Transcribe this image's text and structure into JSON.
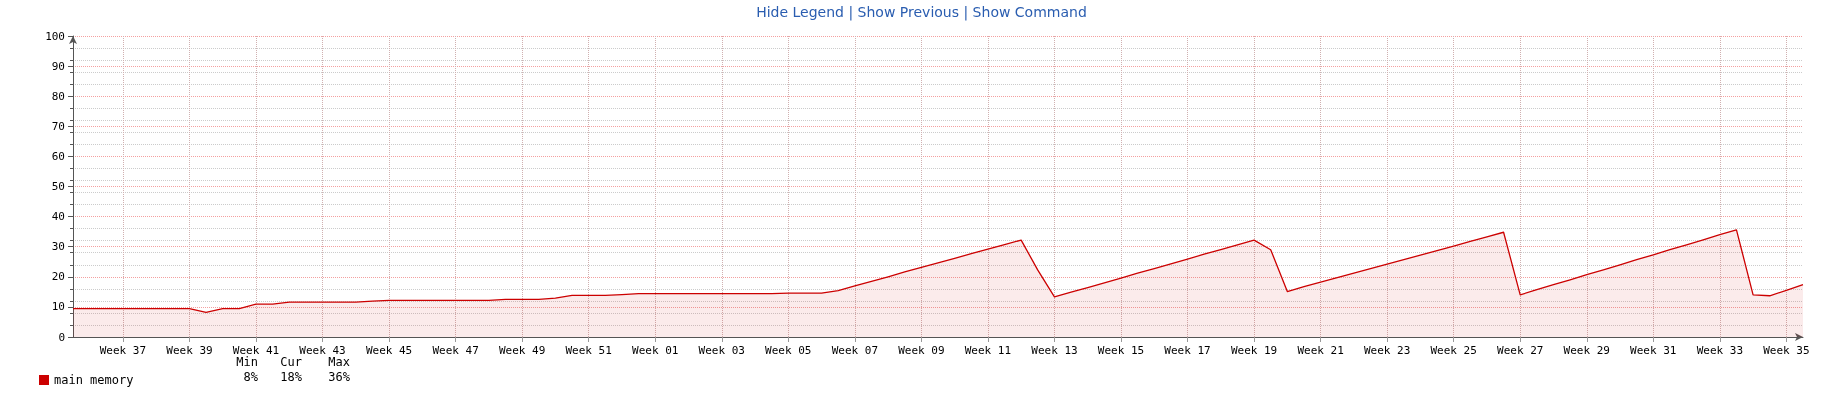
{
  "chart_data": {
    "type": "area",
    "annotations": [
      "Hide Legend | Show Previous | Show Command",
      "Min",
      "Cur",
      "Max",
      "8%",
      "18%",
      "36%"
    ],
    "categories": [
      null,
      null,
      null,
      "Week 37",
      null,
      null,
      null,
      "Week 39",
      null,
      null,
      null,
      "Week 41",
      null,
      null,
      null,
      "Week 43",
      null,
      null,
      null,
      "Week 45",
      null,
      null,
      null,
      "Week 47",
      null,
      null,
      null,
      "Week 49",
      null,
      null,
      null,
      "Week 51",
      null,
      null,
      null,
      "Week 01",
      null,
      null,
      null,
      "Week 03",
      null,
      null,
      null,
      "Week 05",
      null,
      null,
      null,
      "Week 07",
      null,
      null,
      null,
      "Week 09",
      null,
      null,
      null,
      "Week 11",
      null,
      null,
      null,
      "Week 13",
      null,
      null,
      null,
      "Week 15",
      null,
      null,
      null,
      "Week 17",
      null,
      null,
      null,
      "Week 19",
      null,
      null,
      null,
      "Week 21",
      null,
      null,
      null,
      "Week 23",
      null,
      null,
      null,
      "Week 25",
      null,
      null,
      null,
      "Week 27",
      null,
      null,
      null,
      "Week 29",
      null,
      null,
      null,
      "Week 31",
      null,
      null,
      null,
      "Week 33",
      null,
      null,
      null,
      "Week 35",
      null
    ],
    "series": [
      {
        "name": "main memory",
        "color": "#cc0000",
        "values": [
          9.4,
          9.4,
          9.4,
          9.4,
          9.4,
          9.4,
          9.4,
          9.4,
          8.2,
          9.4,
          9.4,
          10.9,
          10.9,
          11.6,
          11.6,
          11.6,
          11.6,
          11.6,
          11.9,
          12.2,
          12.2,
          12.2,
          12.2,
          12.2,
          12.2,
          12.2,
          12.5,
          12.5,
          12.5,
          12.9,
          13.8,
          13.8,
          13.8,
          14.1,
          14.4,
          14.4,
          14.4,
          14.4,
          14.4,
          14.4,
          14.4,
          14.4,
          14.4,
          14.6,
          14.6,
          14.6,
          15.4,
          17.0,
          18.5,
          20.0,
          21.6,
          23.1,
          24.6,
          26.1,
          27.7,
          29.2,
          30.7,
          32.2,
          22.2,
          13.3,
          14.9,
          16.4,
          18.0,
          19.6,
          21.2,
          22.7,
          24.3,
          25.9,
          27.5,
          29.0,
          30.6,
          32.2,
          29.0,
          15.1,
          16.7,
          18.2,
          19.7,
          21.2,
          22.7,
          24.2,
          25.7,
          27.2,
          28.7,
          30.2,
          31.8,
          33.3,
          34.8,
          14.0,
          15.7,
          17.4,
          19.0,
          20.7,
          22.3,
          24.0,
          25.7,
          27.3,
          29.0,
          30.6,
          32.3,
          34.0,
          35.6,
          14.0,
          13.7,
          15.5,
          17.4
        ]
      }
    ],
    "ylim": [
      0,
      100
    ],
    "yticks": [
      0,
      10,
      20,
      30,
      40,
      50,
      60,
      70,
      80,
      90,
      100
    ],
    "grid": true,
    "legend": "bottom left",
    "marker": "none"
  }
}
